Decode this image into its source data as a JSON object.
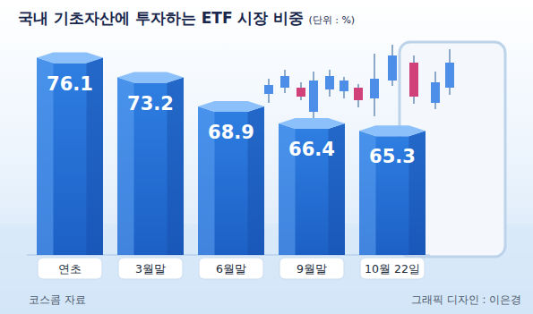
{
  "chart_data": {
    "type": "bar",
    "title": "국내 기초자산에 투자하는 ETF 시장 비중",
    "subtitle": "(단위 : %)",
    "categories": [
      "연초",
      "3월말",
      "6월말",
      "9월말",
      "10월 22일"
    ],
    "values": [
      76.1,
      73.2,
      68.9,
      66.4,
      65.3
    ],
    "color": "#2f7fe3",
    "ylim": [
      47,
      80
    ],
    "grid": false,
    "data_labels": true,
    "tick_labels": "x",
    "annotations": [
      "코스콤 자료",
      "그래픽 디자인 : 이은경"
    ]
  }
}
